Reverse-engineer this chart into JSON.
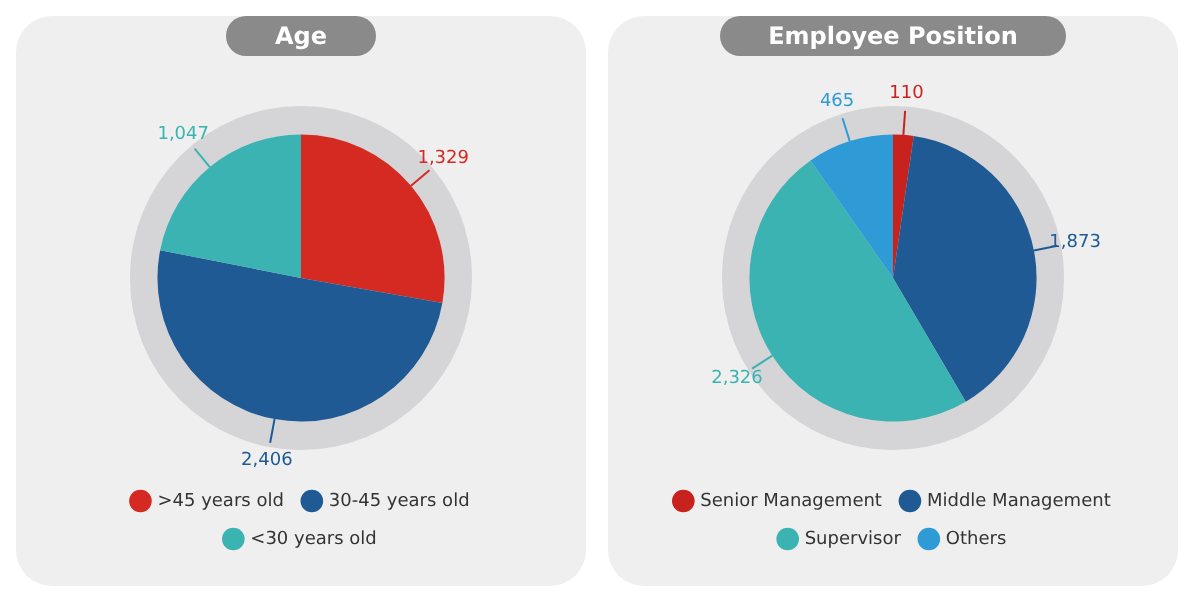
{
  "chart_data": [
    {
      "type": "pie",
      "title": "Age",
      "categories": [
        ">45 years old",
        "30-45 years old",
        "<30 years old"
      ],
      "values": [
        1329,
        2406,
        1047
      ],
      "colors": [
        "#d42a22",
        "#1f5a94",
        "#3bb3b3"
      ],
      "value_labels": [
        "1,329",
        "2,406",
        "1,047"
      ],
      "legend": "bottom"
    },
    {
      "type": "pie",
      "title": "Employee Position",
      "categories": [
        "Senior Management",
        "Middle Management",
        "Supervisor",
        "Others"
      ],
      "values": [
        110,
        1873,
        2326,
        465
      ],
      "colors": [
        "#c8221e",
        "#1f5a94",
        "#3bb3b3",
        "#2e9bd6"
      ],
      "value_labels": [
        "110",
        "1,873",
        "2,326",
        "465"
      ],
      "legend": "bottom"
    }
  ]
}
